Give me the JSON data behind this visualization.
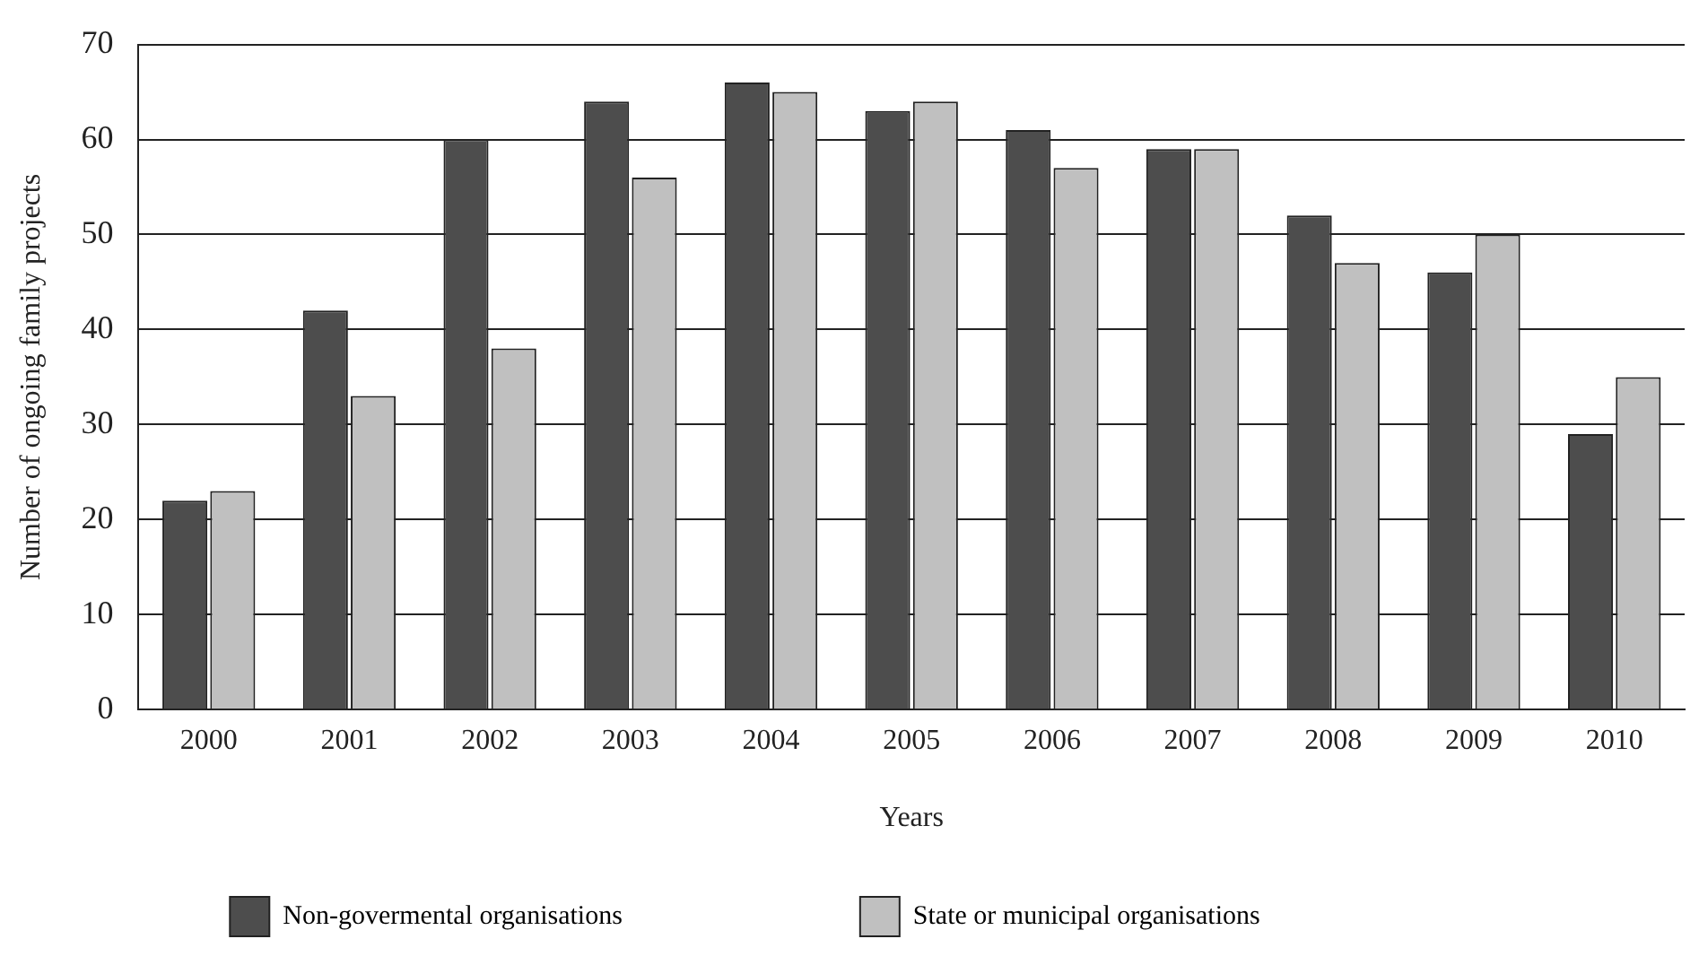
{
  "chart_data": {
    "type": "bar",
    "xlabel": "Years",
    "ylabel": "Number of ongoing family projects",
    "categories": [
      "2000",
      "2001",
      "2002",
      "2003",
      "2004",
      "2005",
      "2006",
      "2007",
      "2008",
      "2009",
      "2010"
    ],
    "series": [
      {
        "name": "Non-govermental organisations",
        "color": "#4d4d4d",
        "values": [
          22,
          42,
          60,
          64,
          66,
          63,
          61,
          59,
          52,
          46,
          29
        ]
      },
      {
        "name": "State or municipal organisations",
        "color": "#c0c0c0",
        "values": [
          23,
          33,
          38,
          56,
          65,
          64,
          57,
          59,
          47,
          50,
          35
        ]
      }
    ],
    "ylim": [
      0,
      70
    ],
    "yticks": [
      0,
      10,
      20,
      30,
      40,
      50,
      60,
      70
    ],
    "grid": "y",
    "legend": "bottom"
  }
}
